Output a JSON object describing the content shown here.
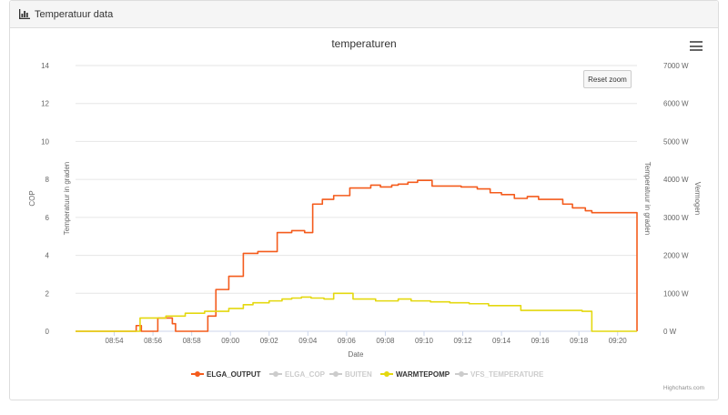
{
  "panel": {
    "title": "Temperatuur data"
  },
  "toolbar": {
    "reset_zoom_label": "Reset zoom",
    "menu_icon": "hamburger-menu-icon"
  },
  "credits": "Highcharts.com",
  "chart_data": {
    "type": "line",
    "step": true,
    "title": "temperaturen",
    "xlabel": "Date",
    "x_ticks": [
      "08:54",
      "08:56",
      "08:58",
      "09:00",
      "09:02",
      "09:04",
      "09:06",
      "09:08",
      "09:10",
      "09:12",
      "09:14",
      "09:16",
      "09:18",
      "09:20"
    ],
    "xlim": [
      "08:52",
      "09:21"
    ],
    "grid": true,
    "legend_position": "bottom",
    "axes": [
      {
        "id": "cop",
        "title": "COP",
        "side": "left",
        "range": [
          0,
          14
        ],
        "ticks": [
          "0",
          "2",
          "4",
          "6",
          "8",
          "10",
          "12",
          "14"
        ]
      },
      {
        "id": "temp_left",
        "title": "Temperatuur in graden",
        "side": "left",
        "range": [
          0,
          14
        ],
        "ticks": []
      },
      {
        "id": "temp_right",
        "title": "Temperatuur in graden",
        "side": "right",
        "range": [
          0,
          14
        ],
        "ticks": []
      },
      {
        "id": "vermogen",
        "title": "Vermogen",
        "side": "right",
        "range": [
          0,
          7000
        ],
        "ticks": [
          "0 W",
          "1000 W",
          "2000 W",
          "3000 W",
          "4000 W",
          "5000 W",
          "6000 W",
          "7000 W"
        ]
      }
    ],
    "series": [
      {
        "name": "ELGA_OUTPUT",
        "color": "#f45b1c",
        "visible": true,
        "x": [
          "08:52",
          "08:55:08",
          "08:55:24",
          "08:55:36",
          "08:56:15",
          "08:57:00",
          "08:57:10",
          "08:57:45",
          "08:57:55",
          "08:58:50",
          "08:59:15",
          "08:59:55",
          "09:00:40",
          "09:01:25",
          "09:02:25",
          "09:03:10",
          "09:03:50",
          "09:04:15",
          "09:04:45",
          "09:05:20",
          "09:06:10",
          "09:07:15",
          "09:07:45",
          "09:08:20",
          "09:08:40",
          "09:09:10",
          "09:09:40",
          "09:10:25",
          "09:11:00",
          "09:11:55",
          "09:12:45",
          "09:13:25",
          "09:14:00",
          "09:14:40",
          "09:15:20",
          "09:15:55",
          "09:17:10",
          "09:17:40",
          "09:18:20",
          "09:18:40",
          "09:21"
        ],
        "y": [
          0,
          0.3,
          0,
          0,
          0.7,
          0.4,
          0,
          0,
          0,
          0.8,
          2.2,
          2.9,
          4.1,
          4.2,
          5.2,
          5.3,
          5.2,
          6.7,
          6.95,
          7.15,
          7.55,
          7.7,
          7.6,
          7.7,
          7.75,
          7.85,
          7.95,
          7.65,
          7.65,
          7.6,
          7.5,
          7.3,
          7.2,
          7.0,
          7.1,
          6.95,
          6.7,
          6.5,
          6.35,
          6.25,
          0
        ]
      },
      {
        "name": "ELGA_COP",
        "color": "#cccccc",
        "visible": false,
        "x": [],
        "y": []
      },
      {
        "name": "BUITEN",
        "color": "#cccccc",
        "visible": false,
        "x": [],
        "y": []
      },
      {
        "name": "WARMTEPOMP",
        "color": "#e4d80f",
        "visible": true,
        "x": [
          "08:52",
          "08:55:20",
          "08:56:40",
          "08:57:40",
          "08:58:40",
          "08:59:55",
          "09:00:40",
          "09:01:10",
          "09:02:00",
          "09:02:40",
          "09:03:10",
          "09:03:40",
          "09:04:10",
          "09:04:50",
          "09:05:20",
          "09:05:50",
          "09:06:20",
          "09:07:30",
          "09:08:40",
          "09:09:20",
          "09:10:20",
          "09:11:20",
          "09:12:20",
          "09:13:20",
          "09:15:00",
          "09:16:10",
          "09:18:10",
          "09:18:40",
          "09:21"
        ],
        "y": [
          0,
          0.7,
          0.8,
          0.95,
          1.05,
          1.2,
          1.4,
          1.5,
          1.6,
          1.7,
          1.75,
          1.8,
          1.75,
          1.7,
          2.0,
          2.0,
          1.7,
          1.6,
          1.7,
          1.6,
          1.55,
          1.5,
          1.45,
          1.35,
          1.1,
          1.1,
          1.05,
          0,
          0
        ]
      },
      {
        "name": "VFS_TEMPERATURE",
        "color": "#cccccc",
        "visible": false,
        "x": [],
        "y": []
      }
    ]
  }
}
